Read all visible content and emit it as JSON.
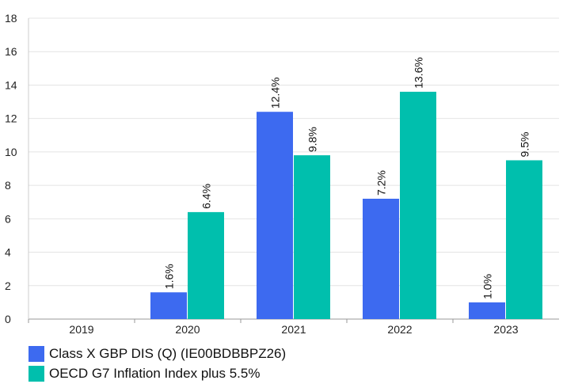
{
  "chart_data": {
    "type": "bar",
    "categories": [
      "2019",
      "2020",
      "2021",
      "2022",
      "2023"
    ],
    "series": [
      {
        "name": "Class X GBP DIS (Q) (IE00BDBBPZ26)",
        "color": "#3d6af0",
        "values": [
          null,
          1.6,
          12.4,
          7.2,
          1.0
        ],
        "labels": [
          "",
          "1.6%",
          "12.4%",
          "7.2%",
          "1.0%"
        ]
      },
      {
        "name": "OECD G7 Inflation Index plus 5.5%",
        "color": "#00bfad",
        "values": [
          null,
          6.4,
          9.8,
          13.6,
          9.5
        ],
        "labels": [
          "",
          "6.4%",
          "9.8%",
          "13.6%",
          "9.5%"
        ]
      }
    ],
    "y_ticks": [
      "0",
      "2",
      "4",
      "6",
      "8",
      "10",
      "12",
      "14",
      "16",
      "18"
    ],
    "ylim": [
      0,
      18
    ],
    "grid": true,
    "legend_position": "bottom-left"
  }
}
